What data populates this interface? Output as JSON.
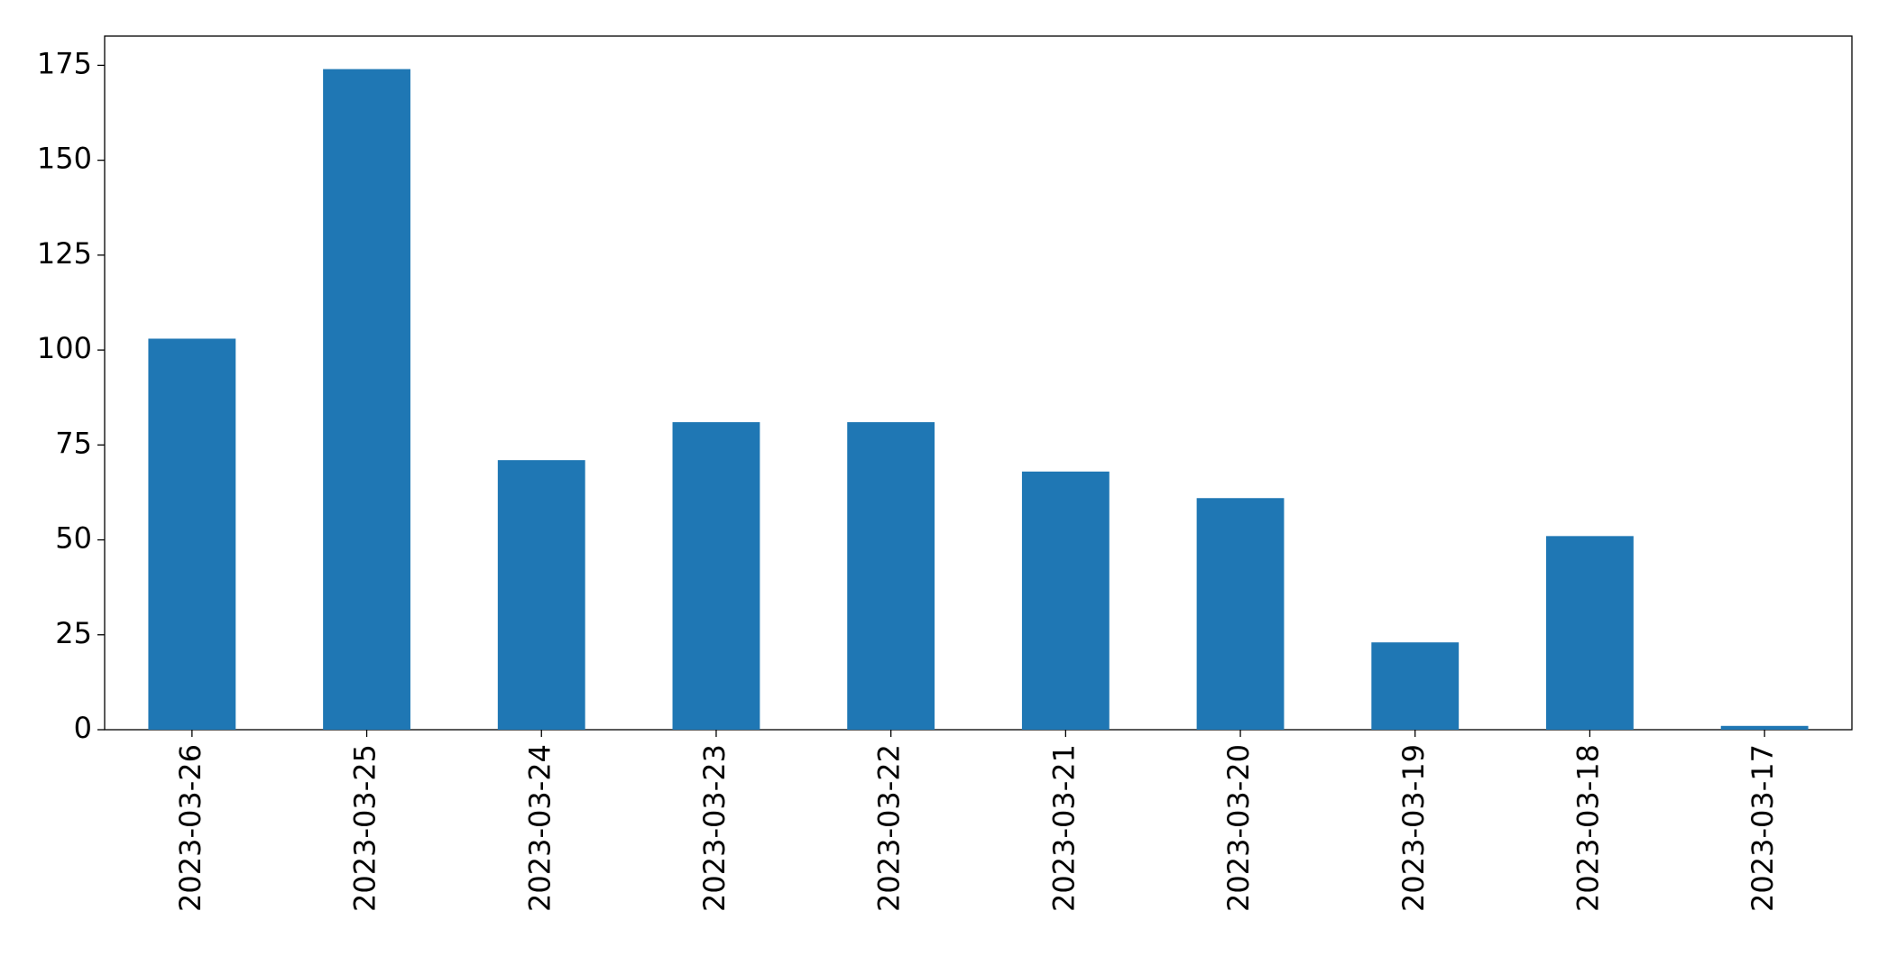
{
  "chart_data": {
    "type": "bar",
    "categories": [
      "2023-03-26",
      "2023-03-25",
      "2023-03-24",
      "2023-03-23",
      "2023-03-22",
      "2023-03-21",
      "2023-03-20",
      "2023-03-19",
      "2023-03-18",
      "2023-03-17"
    ],
    "values": [
      103,
      174,
      71,
      81,
      81,
      68,
      61,
      23,
      51,
      1
    ],
    "color": "#1f77b4",
    "ylim": [
      0,
      182.7
    ],
    "yticks": [
      0,
      25,
      50,
      75,
      100,
      125,
      150,
      175
    ],
    "grid": false
  }
}
